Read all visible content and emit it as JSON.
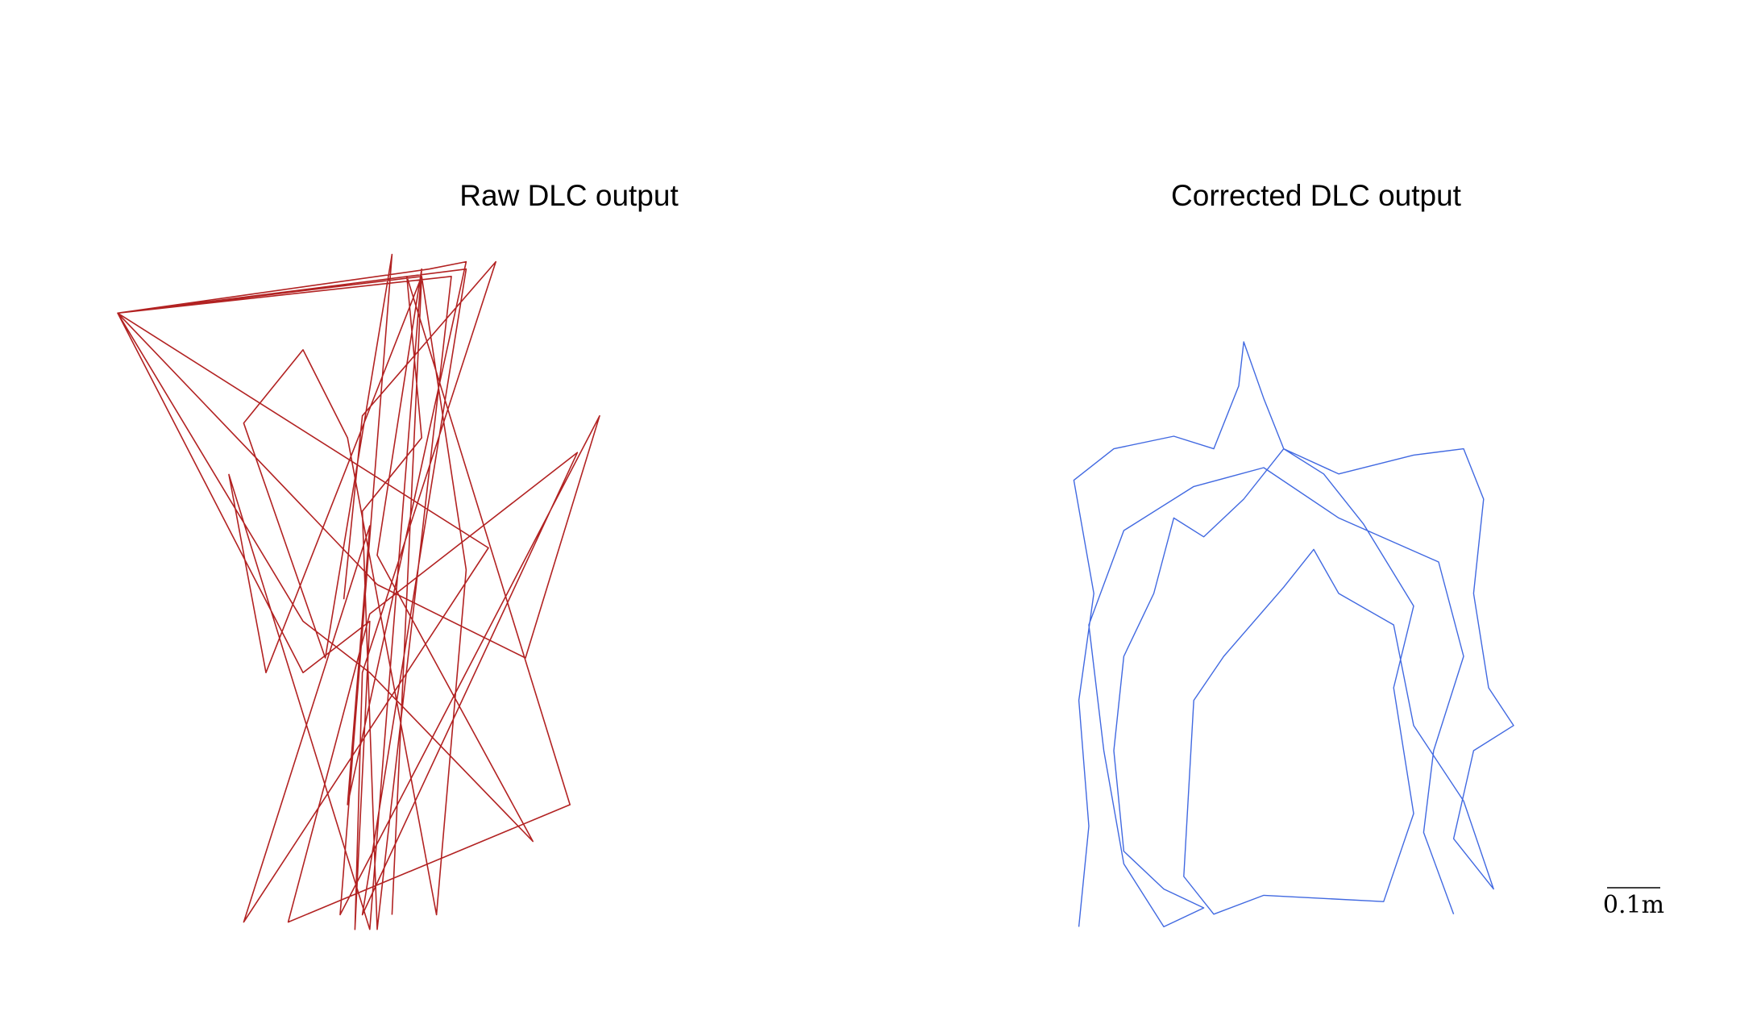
{
  "chart_data": [
    {
      "type": "line",
      "title": "Raw DLC output",
      "xlabel": "",
      "ylabel": "",
      "grid": false,
      "axes_visible": false,
      "series": [
        {
          "color": "#b22222",
          "points": [
            [
              0.355,
              0.52
            ],
            [
              0.38,
              0.27
            ],
            [
              0.56,
              0.06
            ],
            [
              0.38,
              0.62
            ],
            [
              0.37,
              0.97
            ],
            [
              0.39,
              0.55
            ],
            [
              0.3,
              0.62
            ],
            [
              0.05,
              0.13
            ],
            [
              0.46,
              0.08
            ],
            [
              0.52,
              0.48
            ],
            [
              0.48,
              0.95
            ],
            [
              0.36,
              0.3
            ],
            [
              0.3,
              0.18
            ],
            [
              0.22,
              0.28
            ],
            [
              0.33,
              0.6
            ],
            [
              0.42,
              0.05
            ],
            [
              0.35,
              0.95
            ],
            [
              0.7,
              0.27
            ],
            [
              0.6,
              0.6
            ],
            [
              0.4,
              0.5
            ],
            [
              0.05,
              0.13
            ],
            [
              0.47,
              0.07
            ],
            [
              0.52,
              0.06
            ],
            [
              0.36,
              0.8
            ],
            [
              0.39,
              0.42
            ],
            [
              0.22,
              0.96
            ],
            [
              0.55,
              0.45
            ],
            [
              0.05,
              0.13
            ],
            [
              0.5,
              0.08
            ],
            [
              0.4,
              0.97
            ],
            [
              0.38,
              0.4
            ],
            [
              0.46,
              0.3
            ],
            [
              0.44,
              0.08
            ],
            [
              0.66,
              0.8
            ],
            [
              0.28,
              0.96
            ],
            [
              0.39,
              0.54
            ],
            [
              0.67,
              0.32
            ],
            [
              0.38,
              0.95
            ],
            [
              0.52,
              0.07
            ],
            [
              0.05,
              0.13
            ],
            [
              0.3,
              0.55
            ],
            [
              0.39,
              0.62
            ],
            [
              0.61,
              0.85
            ],
            [
              0.4,
              0.46
            ],
            [
              0.46,
              0.07
            ],
            [
              0.39,
              0.97
            ],
            [
              0.2,
              0.35
            ],
            [
              0.25,
              0.62
            ],
            [
              0.46,
              0.08
            ],
            [
              0.42,
              0.95
            ]
          ]
        }
      ]
    },
    {
      "type": "line",
      "title": "Corrected DLC output",
      "xlabel": "",
      "ylabel": "",
      "grid": false,
      "axes_visible": false,
      "series": [
        {
          "color": "#4169e1",
          "points": [
            [
              0.03,
              0.98
            ],
            [
              0.05,
              0.82
            ],
            [
              0.03,
              0.62
            ],
            [
              0.06,
              0.45
            ],
            [
              0.02,
              0.27
            ],
            [
              0.1,
              0.22
            ],
            [
              0.22,
              0.2
            ],
            [
              0.3,
              0.22
            ],
            [
              0.35,
              0.12
            ],
            [
              0.36,
              0.05
            ],
            [
              0.4,
              0.14
            ],
            [
              0.44,
              0.22
            ],
            [
              0.55,
              0.26
            ],
            [
              0.7,
              0.23
            ],
            [
              0.8,
              0.22
            ],
            [
              0.84,
              0.3
            ],
            [
              0.82,
              0.45
            ],
            [
              0.85,
              0.6
            ],
            [
              0.9,
              0.66
            ],
            [
              0.82,
              0.7
            ],
            [
              0.78,
              0.84
            ],
            [
              0.86,
              0.92
            ],
            [
              0.8,
              0.78
            ],
            [
              0.7,
              0.66
            ],
            [
              0.66,
              0.5
            ],
            [
              0.55,
              0.45
            ],
            [
              0.5,
              0.38
            ],
            [
              0.44,
              0.44
            ],
            [
              0.32,
              0.55
            ],
            [
              0.26,
              0.62
            ],
            [
              0.24,
              0.9
            ],
            [
              0.3,
              0.96
            ],
            [
              0.4,
              0.93
            ],
            [
              0.64,
              0.94
            ],
            [
              0.7,
              0.8
            ],
            [
              0.66,
              0.6
            ],
            [
              0.7,
              0.47
            ],
            [
              0.6,
              0.34
            ],
            [
              0.52,
              0.26
            ],
            [
              0.44,
              0.22
            ],
            [
              0.36,
              0.3
            ],
            [
              0.28,
              0.36
            ],
            [
              0.22,
              0.33
            ],
            [
              0.18,
              0.45
            ],
            [
              0.12,
              0.55
            ],
            [
              0.1,
              0.7
            ],
            [
              0.12,
              0.86
            ],
            [
              0.2,
              0.92
            ],
            [
              0.28,
              0.95
            ],
            [
              0.2,
              0.98
            ],
            [
              0.12,
              0.88
            ],
            [
              0.08,
              0.7
            ],
            [
              0.05,
              0.5
            ],
            [
              0.12,
              0.35
            ],
            [
              0.26,
              0.28
            ],
            [
              0.4,
              0.25
            ],
            [
              0.55,
              0.33
            ],
            [
              0.75,
              0.4
            ],
            [
              0.8,
              0.55
            ],
            [
              0.74,
              0.7
            ],
            [
              0.72,
              0.83
            ],
            [
              0.78,
              0.96
            ]
          ]
        }
      ]
    }
  ],
  "scalebar": {
    "label": "0.1m"
  },
  "colors": {
    "raw": "#b22222",
    "corrected": "#4169e1"
  }
}
